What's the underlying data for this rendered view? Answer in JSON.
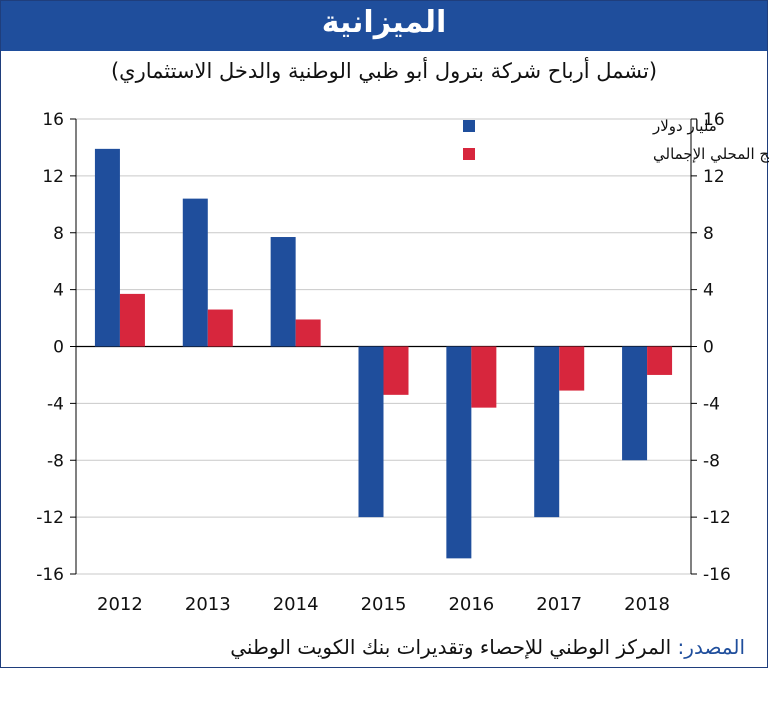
{
  "header": {
    "title": "الميزانية",
    "subtitle": "(تشمل أرباح شركة بترول أبو ظبي الوطنية والدخل الاستثماري)"
  },
  "source": {
    "label": "المصدر:",
    "text": "المركز الوطني للإحصاء وتقديرات بنك الكويت الوطني"
  },
  "colors": {
    "primary_blue": "#1f4e9c",
    "series_red": "#d7263d"
  },
  "chart_data": {
    "type": "bar",
    "categories": [
      "2012",
      "2013",
      "2014",
      "2015",
      "2016",
      "2017",
      "2018"
    ],
    "series": [
      {
        "name": "مليار دولار",
        "color": "#1f4e9c",
        "values": [
          13.9,
          10.4,
          7.7,
          -12,
          -14.9,
          -12,
          -8
        ]
      },
      {
        "name": "٪ من الناتج المحلي الإجمالي",
        "color": "#d7263d",
        "values": [
          3.7,
          2.6,
          1.9,
          -3.4,
          -4.3,
          -3.1,
          -2
        ]
      }
    ],
    "ylim": [
      -16,
      16
    ],
    "yticks": [
      "16",
      "12",
      "8",
      "4",
      "0",
      "-4",
      "-8",
      "-12",
      "-16"
    ],
    "y2ticks": [
      "16",
      "12",
      "8",
      "4",
      "0",
      "-4",
      "-8",
      "-12",
      "-16"
    ],
    "grid": true,
    "legend_position": "top-right"
  }
}
